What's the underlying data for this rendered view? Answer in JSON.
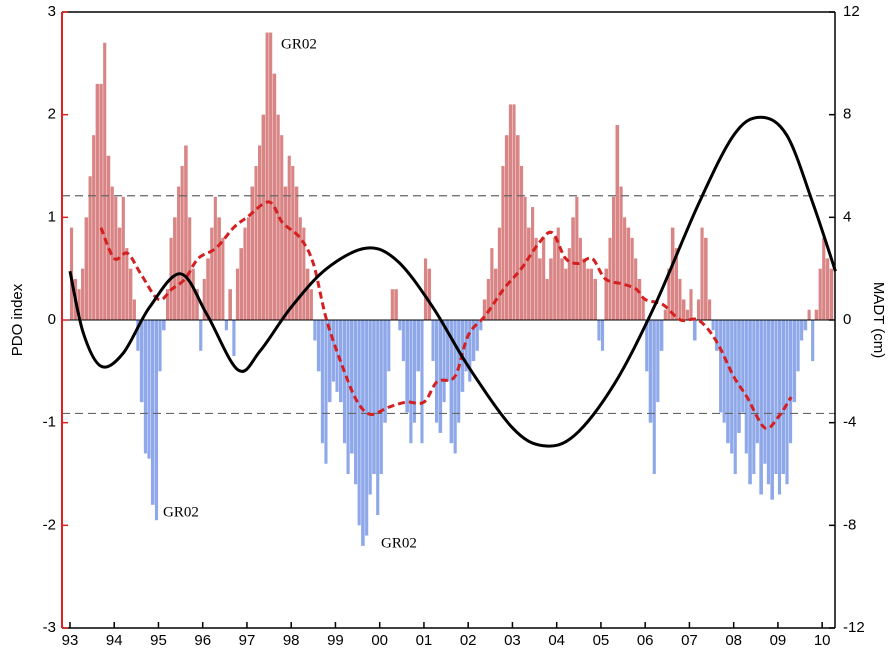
{
  "chart_data": {
    "type": "bar",
    "y_label": "PDO index",
    "y2_label": "MADT (cm)",
    "xlim": [
      1992.82,
      2010.29
    ],
    "xticks": [
      {
        "value": 1993,
        "label": "93"
      },
      {
        "value": 1994,
        "label": "94"
      },
      {
        "value": 1995,
        "label": "95"
      },
      {
        "value": 1996,
        "label": "96"
      },
      {
        "value": 1997,
        "label": "97"
      },
      {
        "value": 1998,
        "label": "98"
      },
      {
        "value": 1999,
        "label": "99"
      },
      {
        "value": 2000,
        "label": "00"
      },
      {
        "value": 2001,
        "label": "01"
      },
      {
        "value": 2002,
        "label": "02"
      },
      {
        "value": 2003,
        "label": "03"
      },
      {
        "value": 2004,
        "label": "04"
      },
      {
        "value": 2005,
        "label": "05"
      },
      {
        "value": 2006,
        "label": "06"
      },
      {
        "value": 2007,
        "label": "07"
      },
      {
        "value": 2008,
        "label": "08"
      },
      {
        "value": 2009,
        "label": "09"
      },
      {
        "value": 2010,
        "label": "10"
      }
    ],
    "ylim": [
      -3,
      3
    ],
    "yticks": [
      -3,
      -2,
      -1,
      0,
      1,
      2,
      3
    ],
    "y2lim": [
      -12,
      12
    ],
    "y2ticks": [
      -12,
      -8,
      -4,
      0,
      4,
      8,
      12
    ],
    "y_axis_color": "#e02020",
    "reference_lines": [
      1.21,
      -0.91
    ],
    "annotations": [
      "GR02",
      "GR02",
      "GR02"
    ],
    "series": [
      {
        "type": "bar",
        "positive_color": "#d98585",
        "negative_color": "#8fa8ea",
        "x": [
          1993.0,
          1993.08,
          1993.17,
          1993.25,
          1993.33,
          1993.42,
          1993.5,
          1993.58,
          1993.67,
          1993.75,
          1993.83,
          1993.92,
          1994.0,
          1994.08,
          1994.17,
          1994.25,
          1994.33,
          1994.42,
          1994.5,
          1994.58,
          1994.67,
          1994.75,
          1994.83,
          1994.92,
          1995.0,
          1995.08,
          1995.17,
          1995.25,
          1995.33,
          1995.42,
          1995.5,
          1995.58,
          1995.67,
          1995.75,
          1995.83,
          1995.92,
          1996.0,
          1996.08,
          1996.17,
          1996.25,
          1996.33,
          1996.42,
          1996.5,
          1996.58,
          1996.67,
          1996.75,
          1996.83,
          1996.92,
          1997.0,
          1997.08,
          1997.17,
          1997.25,
          1997.33,
          1997.42,
          1997.5,
          1997.58,
          1997.67,
          1997.75,
          1997.83,
          1997.92,
          1998.0,
          1998.08,
          1998.17,
          1998.25,
          1998.33,
          1998.42,
          1998.5,
          1998.58,
          1998.67,
          1998.75,
          1998.83,
          1998.92,
          1999.0,
          1999.08,
          1999.17,
          1999.25,
          1999.33,
          1999.42,
          1999.5,
          1999.58,
          1999.67,
          1999.75,
          1999.83,
          1999.92,
          2000.0,
          2000.08,
          2000.17,
          2000.25,
          2000.33,
          2000.42,
          2000.5,
          2000.58,
          2000.67,
          2000.75,
          2000.83,
          2000.92,
          2001.0,
          2001.08,
          2001.17,
          2001.25,
          2001.33,
          2001.42,
          2001.5,
          2001.58,
          2001.67,
          2001.75,
          2001.83,
          2001.92,
          2002.0,
          2002.08,
          2002.17,
          2002.25,
          2002.33,
          2002.42,
          2002.5,
          2002.58,
          2002.67,
          2002.75,
          2002.83,
          2002.92,
          2003.0,
          2003.08,
          2003.17,
          2003.25,
          2003.33,
          2003.42,
          2003.5,
          2003.58,
          2003.67,
          2003.75,
          2003.83,
          2003.92,
          2004.0,
          2004.08,
          2004.17,
          2004.25,
          2004.33,
          2004.42,
          2004.5,
          2004.58,
          2004.67,
          2004.75,
          2004.83,
          2004.92,
          2005.0,
          2005.08,
          2005.17,
          2005.25,
          2005.33,
          2005.42,
          2005.5,
          2005.58,
          2005.67,
          2005.75,
          2005.83,
          2005.92,
          2006.0,
          2006.08,
          2006.17,
          2006.25,
          2006.33,
          2006.42,
          2006.5,
          2006.58,
          2006.67,
          2006.75,
          2006.83,
          2006.92,
          2007.0,
          2007.08,
          2007.17,
          2007.25,
          2007.33,
          2007.42,
          2007.5,
          2007.58,
          2007.67,
          2007.75,
          2007.83,
          2007.92,
          2008.0,
          2008.08,
          2008.17,
          2008.25,
          2008.33,
          2008.42,
          2008.5,
          2008.58,
          2008.67,
          2008.75,
          2008.83,
          2008.92,
          2009.0,
          2009.08,
          2009.17,
          2009.25,
          2009.33,
          2009.42,
          2009.5,
          2009.58,
          2009.67,
          2009.75,
          2009.83,
          2009.92,
          2010.0,
          2010.08,
          2010.17
        ],
        "values": [
          0.9,
          0.4,
          0.3,
          0.5,
          1.0,
          1.4,
          1.8,
          2.3,
          2.3,
          2.7,
          1.6,
          1.3,
          1.2,
          0.9,
          1.2,
          0.7,
          0.5,
          0.2,
          -0.3,
          -0.8,
          -1.3,
          -1.35,
          -1.8,
          -1.95,
          -0.5,
          -0.1,
          0.3,
          0.8,
          1.0,
          1.3,
          1.5,
          1.7,
          1.0,
          0.5,
          0.3,
          -0.3,
          0.4,
          0.6,
          0.9,
          1.2,
          1.0,
          0.8,
          -0.1,
          0.3,
          -0.35,
          0.5,
          0.7,
          0.9,
          1.0,
          1.3,
          1.5,
          1.7,
          2.0,
          2.8,
          2.8,
          2.4,
          2.0,
          1.8,
          1.3,
          1.6,
          1.5,
          1.3,
          1.0,
          0.9,
          0.5,
          0.3,
          -0.2,
          -0.5,
          -1.2,
          -1.4,
          -0.8,
          -0.6,
          -0.7,
          -0.8,
          -1.2,
          -1.5,
          -1.3,
          -1.6,
          -2.0,
          -2.2,
          -2.1,
          -1.7,
          -1.5,
          -1.9,
          -1.5,
          -1.0,
          -0.5,
          0.3,
          0.3,
          -0.1,
          -0.4,
          -0.9,
          -1.2,
          -1.0,
          -0.5,
          -1.2,
          0.6,
          0.5,
          -0.4,
          -1.0,
          -1.1,
          -0.8,
          -0.6,
          -1.2,
          -1.3,
          -1.0,
          -0.7,
          -0.5,
          -0.6,
          -0.4,
          -0.3,
          -0.1,
          0.2,
          0.4,
          0.7,
          0.5,
          0.9,
          1.5,
          1.8,
          2.1,
          2.1,
          1.8,
          1.5,
          1.2,
          0.9,
          1.1,
          0.8,
          0.6,
          0.8,
          0.4,
          0.6,
          0.8,
          0.9,
          0.6,
          0.5,
          0.7,
          1.0,
          1.2,
          0.8,
          0.6,
          0.5,
          0.5,
          0.4,
          -0.2,
          -0.3,
          0.5,
          0.8,
          1.2,
          1.9,
          1.3,
          1.0,
          0.9,
          0.8,
          0.6,
          0.4,
          0.2,
          -0.5,
          -1.0,
          -1.5,
          -0.8,
          -0.3,
          0.1,
          0.5,
          0.9,
          0.7,
          0.4,
          0.2,
          0.1,
          0.3,
          -0.2,
          0.2,
          0.9,
          0.8,
          0.2,
          -0.1,
          -0.3,
          -0.9,
          -1.0,
          -1.2,
          -1.3,
          -1.5,
          -1.1,
          -0.9,
          -1.3,
          -1.6,
          -1.5,
          -1.2,
          -1.7,
          -1.4,
          -1.6,
          -1.75,
          -1.5,
          -1.7,
          -1.5,
          -1.6,
          -1.2,
          -0.8,
          -0.5,
          -0.2,
          -0.1,
          0.1,
          -0.4,
          0.1,
          0.5,
          0.8,
          0.6,
          0.5
        ]
      },
      {
        "type": "line",
        "color": "#d42020",
        "dashed": true,
        "x": [
          1993.7,
          1994.0,
          1994.3,
          1994.6,
          1995.0,
          1995.3,
          1995.6,
          1995.9,
          1996.3,
          1996.7,
          1997.0,
          1997.5,
          1997.8,
          1998.2,
          1998.5,
          1998.8,
          1999.2,
          1999.5,
          1999.8,
          2000.2,
          2000.6,
          2001.0,
          2001.3,
          2001.7,
          2002.0,
          2002.4,
          2002.8,
          2003.2,
          2003.6,
          2003.9,
          2004.2,
          2004.5,
          2004.8,
          2005.1,
          2005.5,
          2005.8,
          2006.0,
          2006.4,
          2006.8,
          2007.2,
          2007.6,
          2008.0,
          2008.3,
          2008.7,
          2009.0,
          2009.3
        ],
        "values": [
          0.9,
          0.6,
          0.65,
          0.45,
          0.2,
          0.3,
          0.4,
          0.6,
          0.7,
          0.9,
          1.0,
          1.15,
          0.95,
          0.8,
          0.55,
          0.0,
          -0.5,
          -0.8,
          -0.92,
          -0.85,
          -0.8,
          -0.8,
          -0.6,
          -0.55,
          -0.15,
          0.05,
          0.3,
          0.5,
          0.75,
          0.85,
          0.6,
          0.55,
          0.6,
          0.4,
          0.35,
          0.3,
          0.2,
          0.15,
          0.0,
          0.0,
          -0.2,
          -0.55,
          -0.75,
          -1.05,
          -0.95,
          -0.75
        ]
      },
      {
        "type": "line",
        "axis": "y2",
        "color": "#000000",
        "dashed": false,
        "x": [
          1993.0,
          1993.3,
          1993.7,
          1994.2,
          1994.8,
          1995.5,
          1996.1,
          1996.8,
          1997.3,
          1998.0,
          1998.8,
          1999.7,
          2000.4,
          2001.2,
          2002.0,
          2003.0,
          2003.7,
          2004.4,
          2005.3,
          2006.2,
          2007.2,
          2008.0,
          2008.6,
          2009.2,
          2009.8,
          2010.3
        ],
        "values": [
          1.9,
          -0.5,
          -1.8,
          -1.3,
          0.5,
          1.8,
          0.2,
          -1.95,
          -1.2,
          0.5,
          2.0,
          2.8,
          2.3,
          0.5,
          -1.8,
          -4.2,
          -4.9,
          -4.5,
          -2.5,
          0.5,
          4.5,
          7.2,
          7.9,
          7.2,
          4.5,
          1.9
        ]
      }
    ]
  }
}
